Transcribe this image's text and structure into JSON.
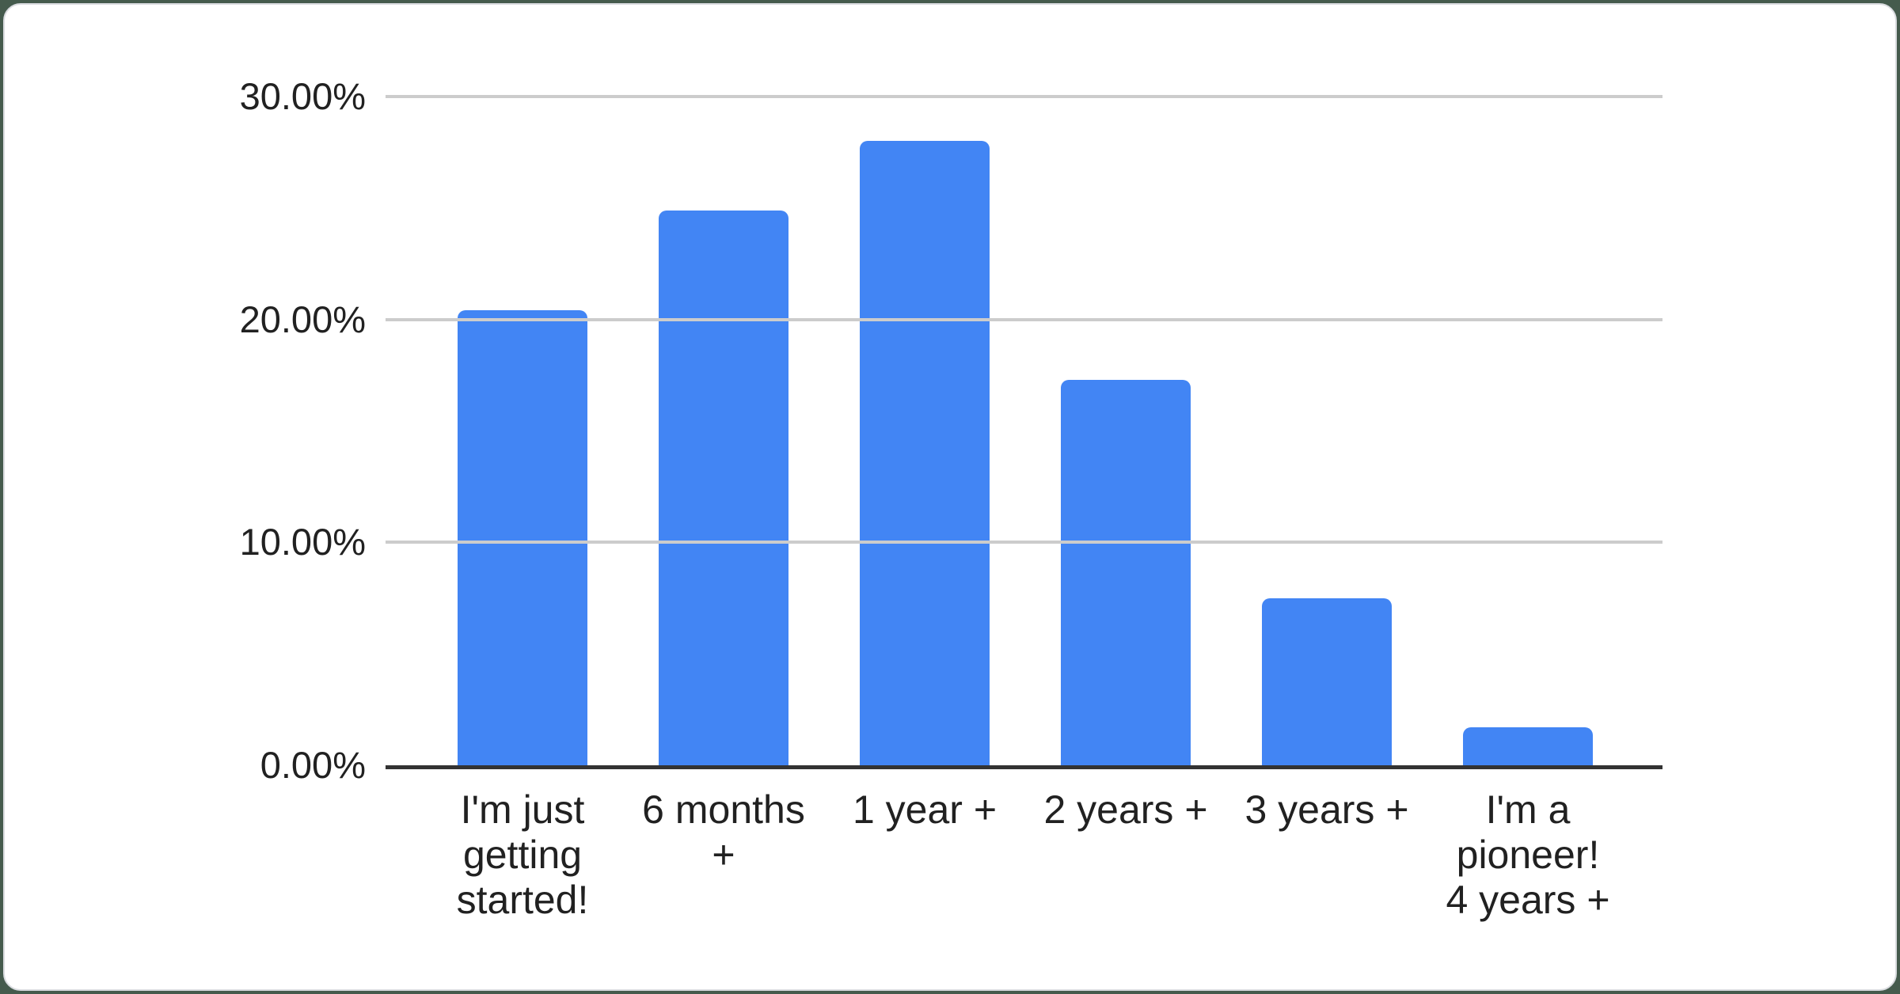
{
  "page": {
    "background_color": "#455B4D",
    "card_background": "#ffffff",
    "card_border_color": "#dadce0"
  },
  "chart_data": {
    "type": "bar",
    "title": "",
    "xlabel": "",
    "ylabel": "",
    "categories": [
      "I'm just getting started!",
      "6 months +",
      "1 year +",
      "2 years +",
      "3 years +",
      "I'm a pioneer! 4 years +"
    ],
    "category_lines": [
      [
        "I'm just",
        "getting",
        "started!"
      ],
      [
        "6 months",
        "+"
      ],
      [
        "1 year +"
      ],
      [
        "2 years +"
      ],
      [
        "3 years +"
      ],
      [
        "I'm a",
        "pioneer!",
        "4 years +"
      ]
    ],
    "values": [
      20.4,
      24.9,
      28.0,
      17.3,
      7.5,
      1.7
    ],
    "value_unit": "%",
    "ylim": [
      0,
      30
    ],
    "y_tick_values": [
      30,
      20,
      10,
      0
    ],
    "y_ticks": [
      "30.00%",
      "20.00%",
      "10.00%",
      "0.00%"
    ],
    "grid": true,
    "legend": "none",
    "bar_color": "#4285F4",
    "gridline_color": "#cccccc",
    "axis_line_color": "#333333",
    "label_color": "#212121"
  }
}
